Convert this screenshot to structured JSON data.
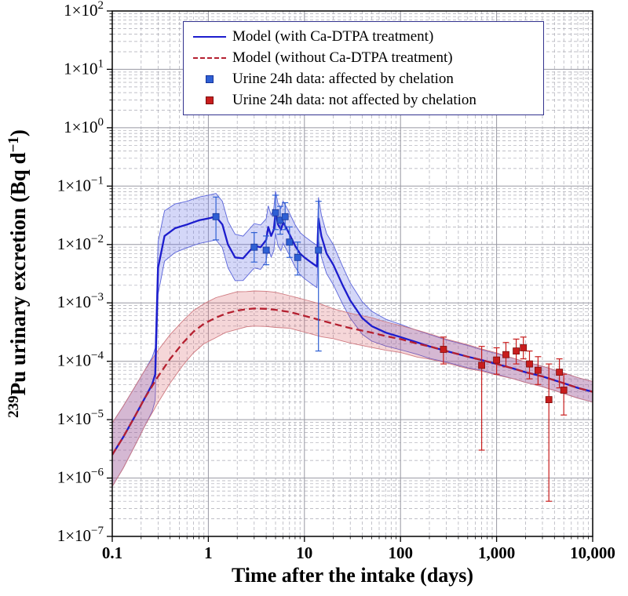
{
  "figure": {
    "title": "",
    "xlabel": "Time after the intake (days)",
    "ylabel": "²³⁹Pu urinary excretion (Bq d⁻¹)"
  },
  "chart_data": {
    "type": "line",
    "title": "",
    "xlabel": "Time after the intake (days)",
    "ylabel": "239Pu urinary excretion (Bq d-1)",
    "ylabel_parts": [
      {
        "t": "239",
        "sup": true
      },
      {
        "t": "Pu urinary excretion (Bq d",
        "sup": false
      },
      {
        "t": "−1",
        "sup": true
      },
      {
        "t": ")",
        "sup": false
      }
    ],
    "x_scale": "log",
    "y_scale": "log",
    "xlim": [
      0.1,
      10000
    ],
    "ylim": [
      1e-07,
      100
    ],
    "grid": true,
    "legend_position": "top-center",
    "x_ticks": [
      {
        "v": 0.1,
        "label": "0.1"
      },
      {
        "v": 1,
        "label": "1"
      },
      {
        "v": 10,
        "label": "10"
      },
      {
        "v": 100,
        "label": "100"
      },
      {
        "v": 1000,
        "label": "1,000"
      },
      {
        "v": 10000,
        "label": "10,000"
      }
    ],
    "y_ticks": [
      {
        "v": 100,
        "base": "1×10",
        "exp": "2"
      },
      {
        "v": 10,
        "base": "1×10",
        "exp": "1"
      },
      {
        "v": 1,
        "base": "1×10",
        "exp": "0"
      },
      {
        "v": 0.1,
        "base": "1×10",
        "exp": "−1"
      },
      {
        "v": 0.01,
        "base": "1×10",
        "exp": "−2"
      },
      {
        "v": 0.001,
        "base": "1×10",
        "exp": "−3"
      },
      {
        "v": 0.0001,
        "base": "1×10",
        "exp": "−4"
      },
      {
        "v": 1e-05,
        "base": "1×10",
        "exp": "−5"
      },
      {
        "v": 1e-06,
        "base": "1×10",
        "exp": "−6"
      },
      {
        "v": 1e-07,
        "base": "1×10",
        "exp": "−7"
      }
    ],
    "colors": {
      "grid_major": "#9898a2",
      "grid_minor": "#aaaab4",
      "frame": "#000000",
      "blue_accent": "#1c1ccd",
      "red_accent": "#b52030"
    },
    "series": [
      {
        "name": "Model (with Ca-DTPA treatment)",
        "kind": "line",
        "line_style": "solid",
        "color": "#1c1ccd",
        "band_fill": "rgba(100,110,230,0.28)",
        "band_edge": "#5a64da",
        "x": [
          0.1,
          0.13,
          0.17,
          0.22,
          0.26,
          0.28,
          0.3,
          0.35,
          0.45,
          0.6,
          0.8,
          1.0,
          1.2,
          1.4,
          1.6,
          1.9,
          2.3,
          2.7,
          3.0,
          3.5,
          4.0,
          4.2,
          4.5,
          4.8,
          5.0,
          5.3,
          5.7,
          6.0,
          6.5,
          7.0,
          8.0,
          9.0,
          10,
          12,
          13.5,
          14,
          15,
          17,
          20,
          25,
          30,
          40,
          50,
          70,
          100,
          150,
          200,
          300,
          500,
          700,
          1000,
          1500,
          2000,
          3000,
          5000,
          7000,
          10000
        ],
        "y": [
          2.5e-06,
          5e-06,
          1.1e-05,
          2.4e-05,
          4e-05,
          6e-05,
          0.004,
          0.014,
          0.019,
          0.022,
          0.026,
          0.028,
          0.03,
          0.022,
          0.01,
          0.006,
          0.0058,
          0.0078,
          0.0095,
          0.009,
          0.012,
          0.02,
          0.014,
          0.018,
          0.036,
          0.022,
          0.018,
          0.024,
          0.019,
          0.015,
          0.0095,
          0.007,
          0.006,
          0.0048,
          0.0042,
          0.028,
          0.014,
          0.007,
          0.0045,
          0.002,
          0.0011,
          0.00055,
          0.0004,
          0.00031,
          0.00026,
          0.00021,
          0.00018,
          0.00015,
          0.00012,
          0.000105,
          9e-05,
          7.5e-05,
          6.5e-05,
          5.5e-05,
          4.2e-05,
          3.5e-05,
          3e-05
        ],
        "band_factor": [
          3.5,
          3.4,
          3.2,
          3.0,
          2.9,
          2.8,
          2.8,
          2.7,
          2.6,
          2.5,
          2.5,
          2.5,
          2.5,
          2.5,
          2.5,
          2.5,
          2.4,
          2.4,
          2.4,
          2.4,
          2.3,
          2.3,
          2.3,
          2.3,
          2.3,
          2.3,
          2.3,
          2.3,
          2.3,
          2.3,
          2.3,
          2.3,
          2.3,
          2.3,
          2.3,
          2.3,
          2.3,
          2.2,
          2.2,
          2.1,
          2.0,
          1.9,
          1.8,
          1.7,
          1.65,
          1.6,
          1.6,
          1.55,
          1.55,
          1.5,
          1.5,
          1.5,
          1.5,
          1.5,
          1.5,
          1.5,
          1.5
        ]
      },
      {
        "name": "Model (without Ca-DTPA treatment)",
        "kind": "line",
        "line_style": "dashed",
        "color": "#b52030",
        "band_fill": "rgba(215,90,100,0.25)",
        "band_edge": "#cf7a80",
        "x": [
          0.1,
          0.13,
          0.17,
          0.22,
          0.3,
          0.4,
          0.55,
          0.7,
          0.9,
          1.2,
          1.5,
          2.0,
          2.5,
          3.0,
          4.0,
          5.0,
          7.0,
          10,
          15,
          20,
          30,
          50,
          70,
          100,
          150,
          200,
          300,
          500,
          700,
          1000,
          1500,
          2000,
          3000,
          5000,
          7000,
          10000
        ],
        "y": [
          2.5e-06,
          5e-06,
          1.1e-05,
          2.4e-05,
          5.5e-05,
          0.00011,
          0.00021,
          0.00032,
          0.00044,
          0.00056,
          0.00065,
          0.00074,
          0.00078,
          0.0008,
          0.00079,
          0.00076,
          0.0007,
          0.0006,
          0.0005,
          0.00044,
          0.00037,
          0.00031,
          0.00027,
          0.00024,
          0.0002,
          0.00018,
          0.00015,
          0.00012,
          0.000105,
          9e-05,
          7.5e-05,
          6.5e-05,
          5.5e-05,
          4.2e-05,
          3.5e-05,
          3e-05
        ],
        "band_factor": [
          3.5,
          3.4,
          3.2,
          3.0,
          2.8,
          2.6,
          2.4,
          2.3,
          2.2,
          2.2,
          2.1,
          2.1,
          2.0,
          2.0,
          2.0,
          2.0,
          1.9,
          1.9,
          1.9,
          1.8,
          1.8,
          1.8,
          1.75,
          1.7,
          1.7,
          1.65,
          1.6,
          1.6,
          1.55,
          1.55,
          1.5,
          1.5,
          1.5,
          1.5,
          1.5,
          1.5
        ]
      },
      {
        "name": "Urine 24h data: affected by chelation",
        "kind": "scatter",
        "marker": "square",
        "color": "#2e5fd3",
        "edge_color": "#16339a",
        "point_format": [
          "x",
          "y",
          "err_low",
          "err_high"
        ],
        "points": [
          [
            1.2,
            0.03,
            0.012,
            0.065
          ],
          [
            3.0,
            0.009,
            0.005,
            0.016
          ],
          [
            4.0,
            0.008,
            0.0045,
            0.014
          ],
          [
            5.0,
            0.035,
            0.018,
            0.07
          ],
          [
            5.6,
            0.026,
            0.015,
            0.045
          ],
          [
            6.3,
            0.03,
            0.018,
            0.052
          ],
          [
            7.0,
            0.011,
            0.006,
            0.02
          ],
          [
            8.5,
            0.006,
            0.003,
            0.011
          ],
          [
            14,
            0.008,
            0.00015,
            0.055
          ]
        ]
      },
      {
        "name": "Urine 24h data: not affected by chelation",
        "kind": "scatter",
        "marker": "square",
        "color": "#c81d1d",
        "edge_color": "#7d0d0d",
        "point_format": [
          "x",
          "y",
          "err_low",
          "err_high"
        ],
        "points": [
          [
            280,
            0.00016,
            9e-05,
            0.00026
          ],
          [
            700,
            8.5e-05,
            3e-06,
            0.00018
          ],
          [
            1000,
            0.000105,
            6e-05,
            0.00017
          ],
          [
            1250,
            0.00013,
            8e-05,
            0.00021
          ],
          [
            1600,
            0.00015,
            9e-05,
            0.00024
          ],
          [
            1900,
            0.00017,
            0.00011,
            0.00026
          ],
          [
            2200,
            9e-05,
            5e-05,
            0.00015
          ],
          [
            2700,
            7e-05,
            4e-05,
            0.00012
          ],
          [
            3500,
            2.2e-05,
            4e-07,
            9e-05
          ],
          [
            4500,
            6.5e-05,
            3.5e-05,
            0.00011
          ],
          [
            5000,
            3.2e-05,
            1.2e-05,
            6e-05
          ]
        ]
      }
    ]
  }
}
